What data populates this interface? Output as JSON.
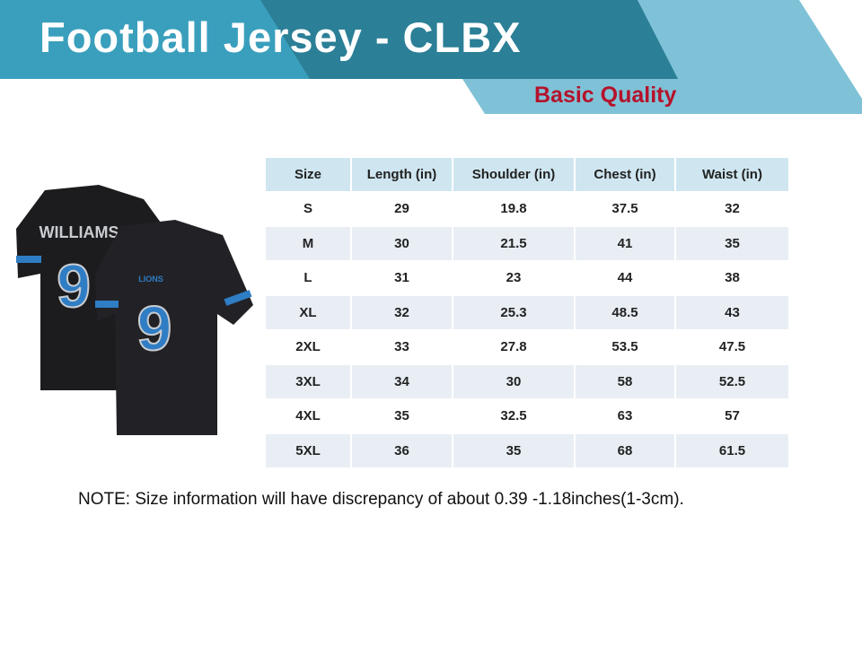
{
  "header": {
    "title": "Football Jersey - CLBX",
    "subtitle": "Basic Quality"
  },
  "jersey": {
    "name": "WILLIAMS",
    "number": "9",
    "team": "LIONS"
  },
  "table": {
    "columns": [
      "Size",
      "Length (in)",
      "Shoulder (in)",
      "Chest (in)",
      "Waist (in)"
    ],
    "rows": [
      [
        "S",
        29,
        19.8,
        37.5,
        32
      ],
      [
        "M",
        30,
        21.5,
        41,
        35
      ],
      [
        "L",
        31,
        23,
        44,
        38
      ],
      [
        "XL",
        32,
        25.3,
        48.5,
        43
      ],
      [
        "2XL",
        33,
        27.8,
        53.5,
        47.5
      ],
      [
        "3XL",
        34,
        30,
        58,
        52.5
      ],
      [
        "4XL",
        35,
        32.5,
        63,
        57
      ],
      [
        "5XL",
        36,
        35,
        68,
        61.5
      ]
    ]
  },
  "note": "NOTE: Size information will have discrepancy of about 0.39 -1.18inches(1-3cm)."
}
